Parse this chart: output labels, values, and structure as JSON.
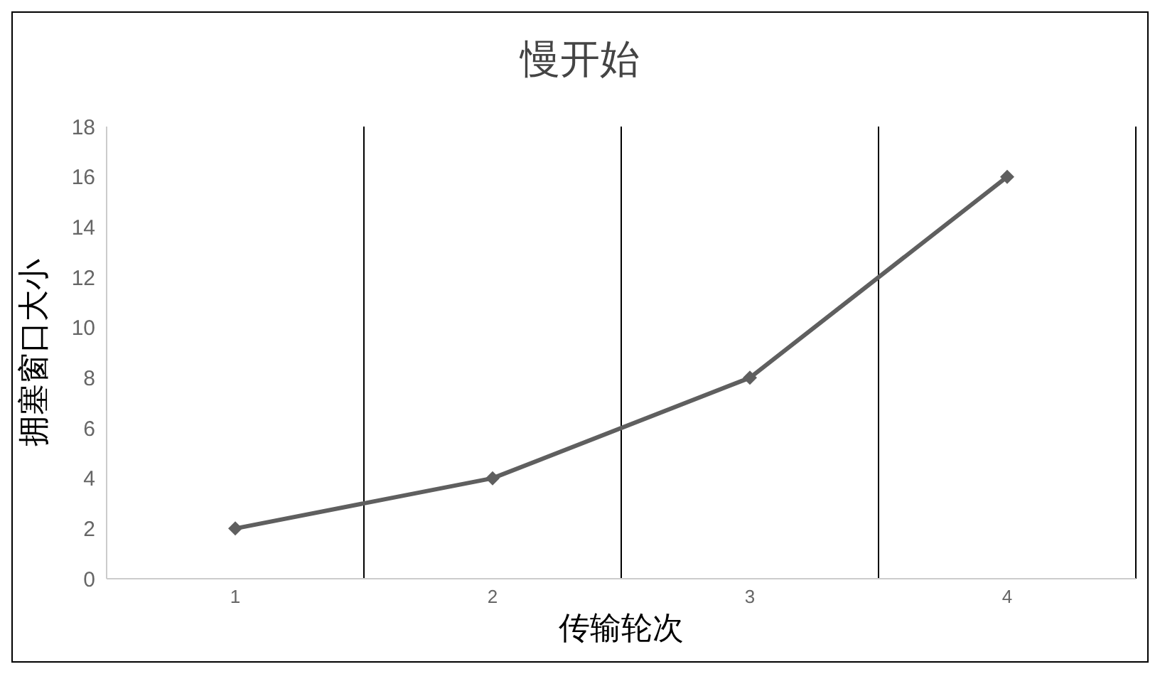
{
  "chart_data": {
    "type": "line",
    "title": "慢开始",
    "xlabel": "传输轮次",
    "ylabel": "拥塞窗口大小",
    "categories": [
      "1",
      "2",
      "3",
      "4"
    ],
    "series": [
      {
        "color": "#5f5f5f",
        "values": [
          2,
          4,
          8,
          16
        ]
      }
    ],
    "ylim": [
      0,
      18
    ],
    "yticks": [
      0,
      2,
      4,
      6,
      8,
      10,
      12,
      14,
      16,
      18
    ],
    "grid": "x",
    "marker": "diamond",
    "line_style": "solid"
  }
}
